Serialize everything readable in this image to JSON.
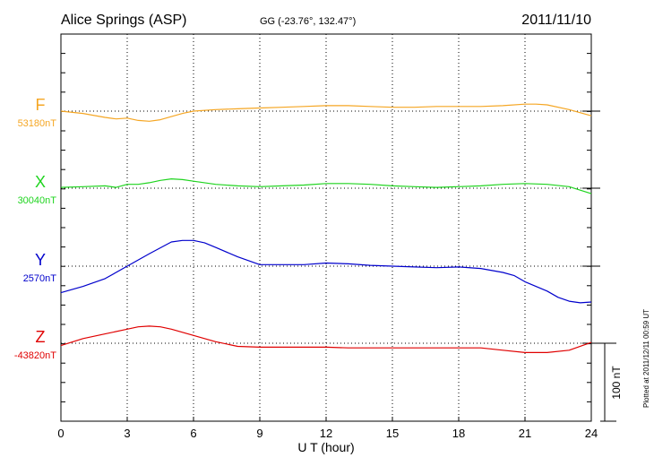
{
  "header": {
    "station": "Alice Springs (ASP)",
    "coords": "GG (-23.76°, 132.47°)",
    "date": "2011/11/10"
  },
  "side_note": "Plotted at 2011/12/11 00:59 UT",
  "scale_label": "100 nT",
  "chart_data": {
    "type": "line",
    "xlabel": "U T (hour)",
    "xlim": [
      0,
      24
    ],
    "xticks": [
      0,
      3,
      6,
      9,
      12,
      15,
      18,
      21,
      24
    ],
    "grid": true,
    "series": [
      {
        "name": "F",
        "baseline_label": "53180nT",
        "color": "#f5a623",
        "x": [
          0,
          1,
          2,
          2.5,
          3,
          3.5,
          4,
          4.5,
          5,
          5.5,
          6,
          7,
          8,
          9,
          10,
          11,
          12,
          13,
          14,
          15,
          16,
          17,
          18,
          19,
          20,
          21,
          21.5,
          22,
          23,
          24
        ],
        "y": [
          0,
          -3,
          -8,
          -10,
          -9,
          -12,
          -13,
          -11,
          -7,
          -3,
          0,
          2,
          3,
          4,
          5,
          6,
          7,
          7,
          6,
          5,
          5,
          6,
          6,
          6,
          7,
          9,
          9,
          8,
          2,
          -6
        ]
      },
      {
        "name": "X",
        "baseline_label": "30040nT",
        "color": "#1fd41f",
        "x": [
          0,
          1,
          2,
          2.5,
          3,
          3.5,
          4,
          4.5,
          5,
          5.5,
          6,
          7,
          8,
          9,
          10,
          11,
          12,
          13,
          14,
          15,
          16,
          17,
          18,
          19,
          20,
          21,
          22,
          23,
          24
        ],
        "y": [
          1,
          2,
          3,
          1,
          5,
          5,
          7,
          10,
          12,
          11,
          9,
          5,
          3,
          2,
          3,
          4,
          6,
          6,
          5,
          3,
          2,
          1,
          2,
          3,
          5,
          6,
          5,
          2,
          -7
        ]
      },
      {
        "name": "Y",
        "baseline_label": "2570nT",
        "color": "#0000cc",
        "x": [
          0,
          1,
          2,
          3,
          4,
          5,
          5.5,
          6,
          6.5,
          7,
          8,
          9,
          10,
          11,
          12,
          13,
          14,
          15,
          16,
          17,
          18,
          19,
          20,
          20.5,
          21,
          22,
          22.5,
          23,
          23.5,
          24
        ],
        "y": [
          -34,
          -26,
          -16,
          0,
          16,
          31,
          33,
          33,
          30,
          24,
          12,
          2,
          2,
          2,
          4,
          3,
          1,
          0,
          -1,
          -2,
          -1,
          -3,
          -8,
          -12,
          -20,
          -32,
          -40,
          -45,
          -47,
          -46
        ]
      },
      {
        "name": "Z",
        "baseline_label": "-43820nT",
        "color": "#e00000",
        "x": [
          0,
          1,
          2,
          3,
          3.5,
          4,
          4.5,
          5,
          6,
          7,
          8,
          9,
          10,
          11,
          12,
          13,
          14,
          15,
          16,
          17,
          18,
          19,
          20,
          21,
          22,
          23,
          24
        ],
        "y": [
          -3,
          6,
          12,
          18,
          21,
          22,
          21,
          18,
          10,
          2,
          -4,
          -5,
          -5,
          -5,
          -5,
          -6,
          -6,
          -6,
          -6,
          -6,
          -6,
          -6,
          -9,
          -12,
          -12,
          -9,
          1
        ]
      }
    ]
  }
}
